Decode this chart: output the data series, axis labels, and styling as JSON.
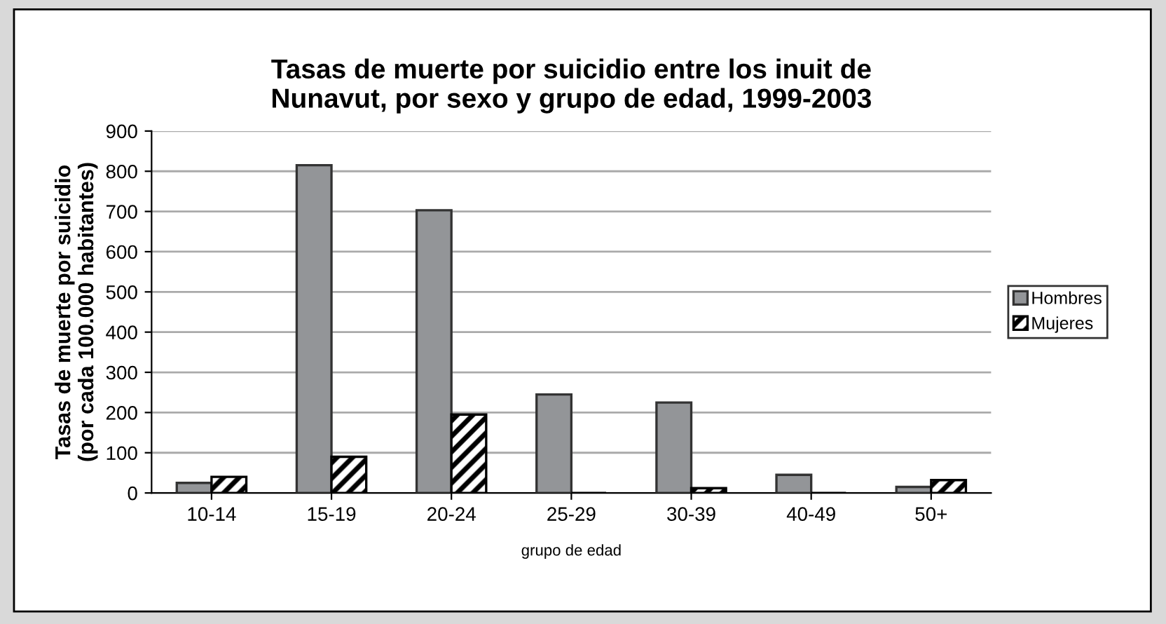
{
  "chart_data": {
    "type": "bar",
    "title": "Tasas de muerte por suicidio entre los inuit de\nNunavut, por sexo y grupo de edad, 1999-2003",
    "xlabel": "grupo de edad",
    "ylabel": "Tasas de muerte por suicidio\n(por cada 100.000 habitantes)",
    "categories": [
      "10-14",
      "15-19",
      "20-24",
      "25-29",
      "30-39",
      "40-49",
      "50+"
    ],
    "series": [
      {
        "name": "Hombres",
        "color": "#939598",
        "values": [
          25,
          815,
          703,
          245,
          225,
          45,
          15
        ]
      },
      {
        "name": "Mujeres",
        "color": "#000000",
        "values": [
          40,
          90,
          195,
          0,
          12,
          0,
          32
        ]
      }
    ],
    "ylim": [
      0,
      900
    ],
    "yticks": [
      0,
      100,
      200,
      300,
      400,
      500,
      600,
      700,
      800,
      900
    ],
    "grid": "y",
    "legend": "right"
  }
}
